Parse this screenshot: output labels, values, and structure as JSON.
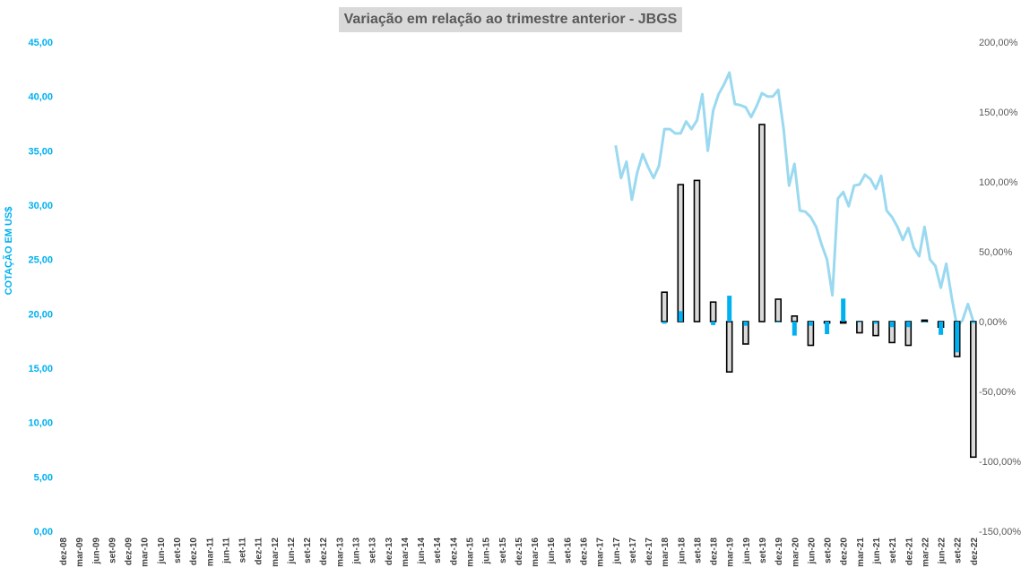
{
  "chart_data": {
    "type": "bar+line",
    "title": "Variação em relação ao trimestre anterior - JBGS",
    "ylabel": "COTAÇÃO EM US$",
    "y_left": {
      "ylim": [
        0,
        45
      ],
      "ticks": [
        "0,00",
        "5,00",
        "10,00",
        "15,00",
        "20,00",
        "25,00",
        "30,00",
        "35,00",
        "40,00",
        "45,00"
      ]
    },
    "y_right": {
      "ylim": [
        -150,
        200
      ],
      "ticks": [
        "-150,00%",
        "-100,00%",
        "-50,00%",
        "0,00%",
        "50,00%",
        "100,00%",
        "150,00%",
        "200,00%"
      ]
    },
    "categories": [
      "dez-08",
      "mar-09",
      "jun-09",
      "set-09",
      "dez-09",
      "mar-10",
      "jun-10",
      "set-10",
      "dez-10",
      "mar-11",
      "jun-11",
      "set-11",
      "dez-11",
      "mar-12",
      "jun-12",
      "set-12",
      "dez-12",
      "mar-13",
      "jun-13",
      "set-13",
      "dez-13",
      "mar-14",
      "jun-14",
      "set-14",
      "dez-14",
      "mar-15",
      "jun-15",
      "set-15",
      "dez-15",
      "mar-16",
      "jun-16",
      "set-16",
      "dez-16",
      "mar-17",
      "jun-17",
      "set-17",
      "dez-17",
      "mar-18",
      "jun-18",
      "set-18",
      "dez-18",
      "mar-19",
      "jun-19",
      "set-19",
      "dez-19",
      "mar-20",
      "jun-20",
      "set-20",
      "dez-20",
      "mar-21",
      "jun-21",
      "set-21",
      "dez-21",
      "mar-22",
      "jun-22",
      "set-22",
      "dez-22"
    ],
    "series": [
      {
        "chart": "bar",
        "axis": "right",
        "color": "#00b0f0",
        "values": [
          null,
          null,
          null,
          null,
          null,
          null,
          null,
          null,
          null,
          null,
          null,
          null,
          null,
          null,
          null,
          null,
          null,
          null,
          null,
          null,
          null,
          null,
          null,
          null,
          null,
          null,
          null,
          null,
          null,
          null,
          null,
          null,
          null,
          null,
          null,
          null,
          null,
          -1.5,
          7.5,
          0,
          -2.5,
          18.5,
          -3,
          0,
          -0.5,
          -10,
          -3,
          -9,
          16.5,
          -0.5,
          -1.5,
          -4,
          -4,
          -0.5,
          -9.5,
          -22,
          -1
        ]
      },
      {
        "chart": "bar",
        "axis": "right",
        "fill": "#d9d9d9",
        "stroke": "#000000",
        "values": [
          null,
          null,
          null,
          null,
          null,
          null,
          null,
          null,
          null,
          null,
          null,
          null,
          null,
          null,
          null,
          null,
          null,
          null,
          null,
          null,
          null,
          null,
          null,
          null,
          null,
          null,
          null,
          null,
          null,
          null,
          null,
          null,
          null,
          null,
          null,
          null,
          null,
          21,
          98,
          101,
          14,
          -36,
          -16,
          141,
          16,
          4,
          -17,
          -1,
          -1,
          -8,
          -10,
          -15,
          -17,
          1,
          -4,
          -25,
          -97
        ]
      }
    ],
    "line": {
      "axis": "left",
      "color": "#9ad9f0",
      "points": [
        {
          "x": "jun-17",
          "y": 35.5
        },
        {
          "x": "jul-17",
          "y": 32.5
        },
        {
          "x": "ago-17",
          "y": 34.0
        },
        {
          "x": "set-17",
          "y": 30.5
        },
        {
          "x": "out-17",
          "y": 33.0
        },
        {
          "x": "nov-17",
          "y": 34.7
        },
        {
          "x": "dez-17",
          "y": 33.5
        },
        {
          "x": "jan-18",
          "y": 32.5
        },
        {
          "x": "fev-18",
          "y": 33.6
        },
        {
          "x": "mar-18",
          "y": 37.0
        },
        {
          "x": "abr-18",
          "y": 37.0
        },
        {
          "x": "mai-18",
          "y": 36.6
        },
        {
          "x": "jun-18",
          "y": 36.6
        },
        {
          "x": "jul-18",
          "y": 37.7
        },
        {
          "x": "ago-18",
          "y": 37.0
        },
        {
          "x": "set-18",
          "y": 37.8
        },
        {
          "x": "out-18",
          "y": 40.2
        },
        {
          "x": "nov-18",
          "y": 35.0
        },
        {
          "x": "dez-18",
          "y": 38.7
        },
        {
          "x": "jan-19",
          "y": 40.2
        },
        {
          "x": "fev-19",
          "y": 41.1
        },
        {
          "x": "mar-19",
          "y": 42.2
        },
        {
          "x": "abr-19",
          "y": 39.3
        },
        {
          "x": "mai-19",
          "y": 39.2
        },
        {
          "x": "jun-19",
          "y": 39.0
        },
        {
          "x": "jul-19",
          "y": 38.1
        },
        {
          "x": "ago-19",
          "y": 39.1
        },
        {
          "x": "set-19",
          "y": 40.3
        },
        {
          "x": "out-19",
          "y": 40.0
        },
        {
          "x": "nov-19",
          "y": 40.0
        },
        {
          "x": "dez-19",
          "y": 40.6
        },
        {
          "x": "jan-20",
          "y": 37.0
        },
        {
          "x": "fev-20",
          "y": 31.8
        },
        {
          "x": "mar-20",
          "y": 33.8
        },
        {
          "x": "abr-20",
          "y": 29.5
        },
        {
          "x": "mai-20",
          "y": 29.4
        },
        {
          "x": "jun-20",
          "y": 28.9
        },
        {
          "x": "jul-20",
          "y": 28.0
        },
        {
          "x": "ago-20",
          "y": 26.4
        },
        {
          "x": "set-20",
          "y": 25.0
        },
        {
          "x": "out-20",
          "y": 21.7
        },
        {
          "x": "nov-20",
          "y": 30.6
        },
        {
          "x": "dez-20",
          "y": 31.2
        },
        {
          "x": "jan-21",
          "y": 29.9
        },
        {
          "x": "fev-21",
          "y": 31.8
        },
        {
          "x": "mar-21",
          "y": 31.9
        },
        {
          "x": "abr-21",
          "y": 32.8
        },
        {
          "x": "mai-21",
          "y": 32.4
        },
        {
          "x": "jun-21",
          "y": 31.5
        },
        {
          "x": "jul-21",
          "y": 32.7
        },
        {
          "x": "ago-21",
          "y": 29.5
        },
        {
          "x": "set-21",
          "y": 28.9
        },
        {
          "x": "out-21",
          "y": 28.0
        },
        {
          "x": "nov-21",
          "y": 26.8
        },
        {
          "x": "dez-21",
          "y": 27.9
        },
        {
          "x": "jan-22",
          "y": 26.1
        },
        {
          "x": "fev-22",
          "y": 25.3
        },
        {
          "x": "mar-22",
          "y": 28.0
        },
        {
          "x": "abr-22",
          "y": 25.0
        },
        {
          "x": "mai-22",
          "y": 24.4
        },
        {
          "x": "jun-22",
          "y": 22.4
        },
        {
          "x": "jul-22",
          "y": 24.6
        },
        {
          "x": "ago-22",
          "y": 21.5
        },
        {
          "x": "set-22",
          "y": 18.8
        },
        {
          "x": "out-22",
          "y": 19.4
        },
        {
          "x": "nov-22",
          "y": 20.9
        },
        {
          "x": "dez-22",
          "y": 19.3
        }
      ]
    },
    "colors": {
      "left_axis": "#00b0f0",
      "right_axis": "#595959",
      "title_bg": "#d9d9d9"
    },
    "grid": false,
    "legend": "none"
  }
}
